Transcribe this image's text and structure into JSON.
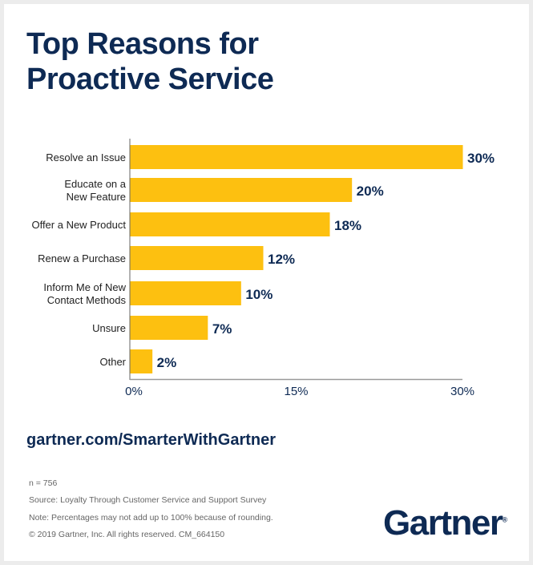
{
  "title_lines": [
    "Top Reasons for",
    "Proactive Service"
  ],
  "chart_data": {
    "type": "bar",
    "orientation": "horizontal",
    "categories": [
      [
        "Resolve an Issue"
      ],
      [
        "Educate on a",
        "New Feature"
      ],
      [
        "Offer a New Product"
      ],
      [
        "Renew a Purchase"
      ],
      [
        "Inform Me of New",
        "Contact Methods"
      ],
      [
        "Unsure"
      ],
      [
        "Other"
      ]
    ],
    "values": [
      30,
      20,
      18,
      12,
      10,
      7,
      2
    ],
    "data_labels": [
      "30%",
      "20%",
      "18%",
      "12%",
      "10%",
      "7%",
      "2%"
    ],
    "xlim": [
      0,
      30
    ],
    "xticks": [
      0,
      15,
      30
    ],
    "xtick_labels": [
      "0%",
      "15%",
      "30%"
    ],
    "grid": false,
    "bar_color": "#fdc010",
    "label_color": "#0e2a54"
  },
  "url": "gartner.com/SmarterWithGartner",
  "footnotes": [
    "n = 756",
    "Source: Loyalty Through Customer Service and Support Survey",
    "Note: Percentages may not add up to 100% because of rounding.",
    "© 2019 Gartner, Inc. All rights reserved. CM_664150"
  ],
  "logo": {
    "text": "Gartner",
    "mark": "®"
  }
}
